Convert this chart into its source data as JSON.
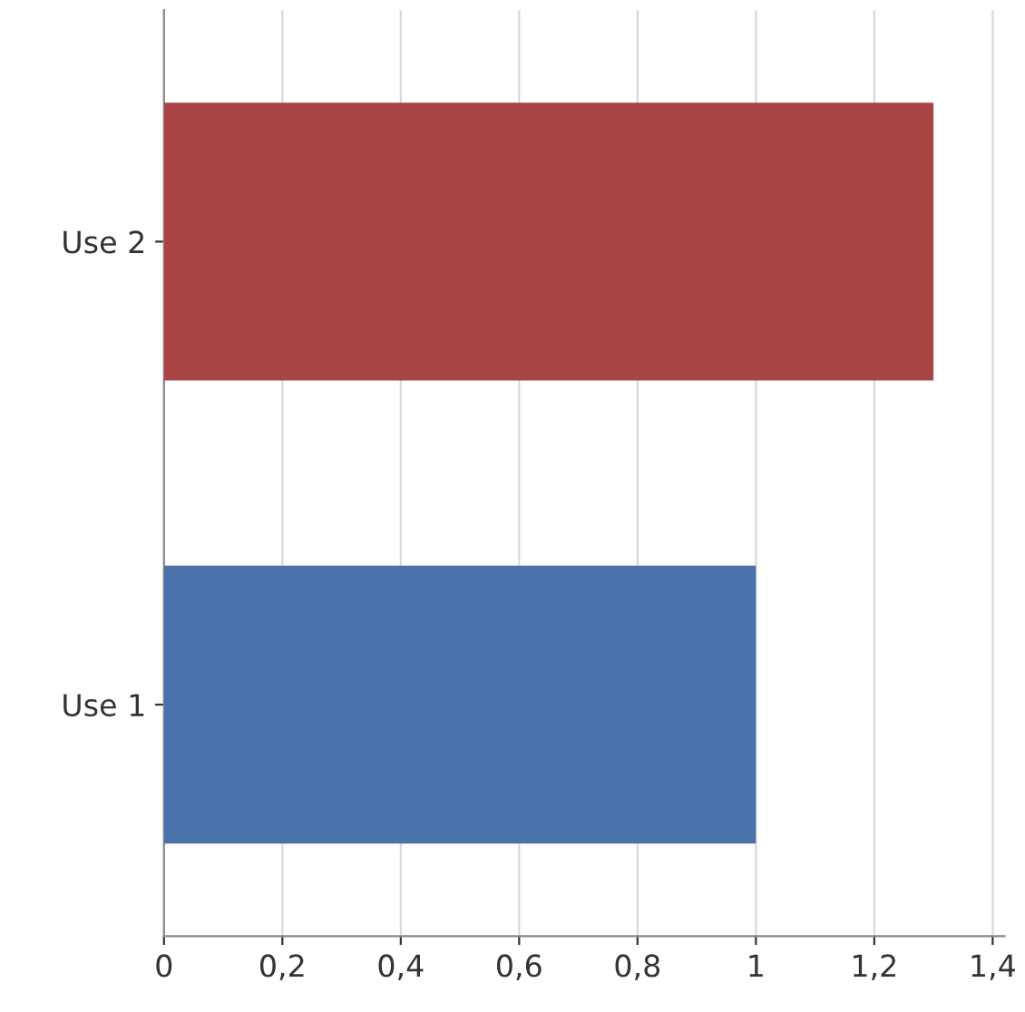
{
  "chart_data": {
    "type": "bar",
    "orientation": "horizontal",
    "categories": [
      "Use 2",
      "Use 1"
    ],
    "values": [
      1.3,
      1.0
    ],
    "colors": [
      "#a84444",
      "#4a72aa"
    ],
    "xlim": [
      0,
      1.42
    ],
    "xticks": [
      0,
      {
        "value": 0.2,
        "label": "0,2"
      },
      {
        "value": 0.4,
        "label": "0,4"
      },
      {
        "value": 0.6,
        "label": "0,6"
      },
      {
        "value": 0.8,
        "label": "0,8"
      },
      1,
      {
        "value": 1.2,
        "label": "1,2"
      },
      {
        "value": 1.4,
        "label": "1,4"
      }
    ],
    "grid": "x",
    "legend": false
  }
}
